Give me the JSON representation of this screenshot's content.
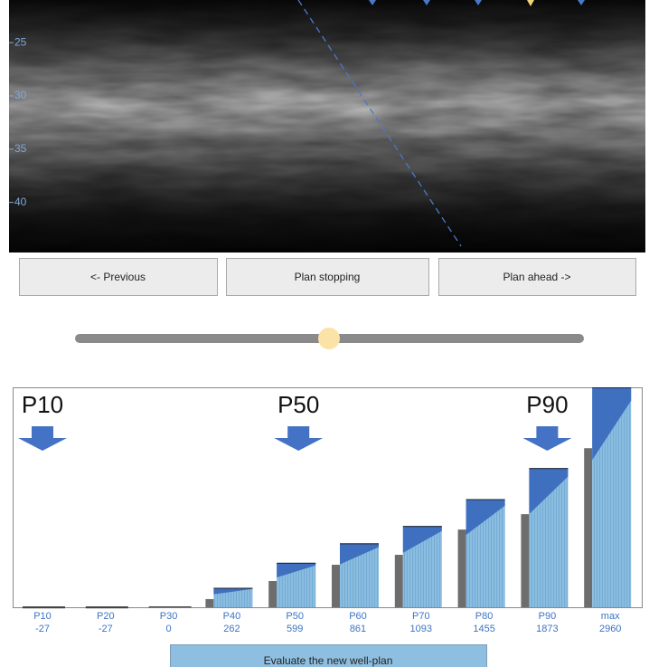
{
  "image_axis": {
    "ylim": [
      21,
      44.7
    ],
    "yticks": [
      25,
      30,
      35,
      40
    ]
  },
  "buttons": [
    "<- Previous",
    "Plan stopping",
    "Plan ahead ->"
  ],
  "chart_data": {
    "type": "bar",
    "categories": [
      "P10",
      "P20",
      "P30",
      "P40",
      "P50",
      "P60",
      "P70",
      "P80",
      "P90",
      "max"
    ],
    "ylim": [
      0,
      2960
    ],
    "series": [
      {
        "color": "#6d6d6d",
        "values": [
          null,
          null,
          null,
          110,
          353,
          572,
          706,
          1046,
          1253,
          2141
        ]
      },
      {
        "color": "#8bbde0",
        "values": [
          -27,
          -27,
          0,
          262,
          599,
          861,
          1093,
          1455,
          1873,
          2960
        ]
      }
    ],
    "annotations": [
      "P10",
      "P50",
      "P90"
    ]
  },
  "evaluate_button": "Evaluate the new well-plan"
}
